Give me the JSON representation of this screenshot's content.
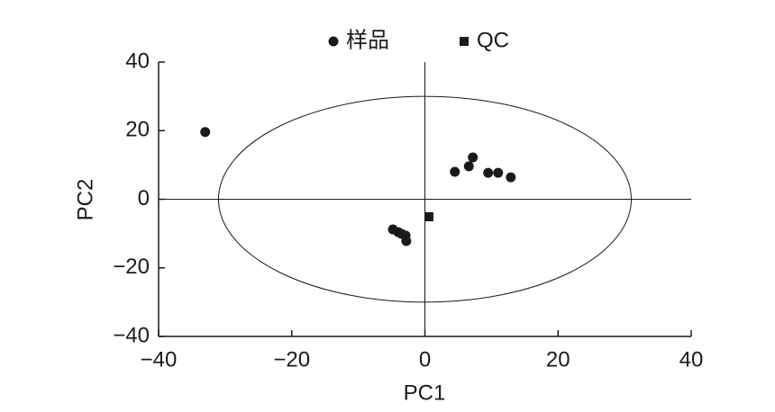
{
  "chart_data": {
    "type": "scatter",
    "xlabel": "PC1",
    "ylabel": "PC2",
    "xlim": [
      -40,
      40
    ],
    "ylim": [
      -40,
      40
    ],
    "xticks": [
      {
        "value": -40,
        "label": "−40"
      },
      {
        "value": -20,
        "label": "−20"
      },
      0,
      20,
      40
    ],
    "yticks": [
      {
        "value": -40,
        "label": "−40"
      },
      {
        "value": -20,
        "label": "−20"
      },
      0,
      20,
      40
    ],
    "ellipse": {
      "cx": 0,
      "cy": 0,
      "rx": 31,
      "ry": 30
    },
    "legend": "top",
    "series": [
      {
        "name": "样品",
        "marker": "circle",
        "color": "#1a1a1a",
        "x": [
          -33,
          4.5,
          6.6,
          7.2,
          9.5,
          11.0,
          12.9,
          -4.8,
          -4.0,
          -3.5,
          -2.9,
          -2.8
        ],
        "values": [
          19.6,
          8.0,
          9.6,
          12.2,
          7.7,
          7.7,
          6.4,
          -8.8,
          -9.6,
          -10.1,
          -10.6,
          -12.2
        ]
      },
      {
        "name": "QC",
        "marker": "square",
        "color": "#1a1a1a",
        "x": [
          0.6
        ],
        "values": [
          -5.1
        ]
      }
    ]
  }
}
